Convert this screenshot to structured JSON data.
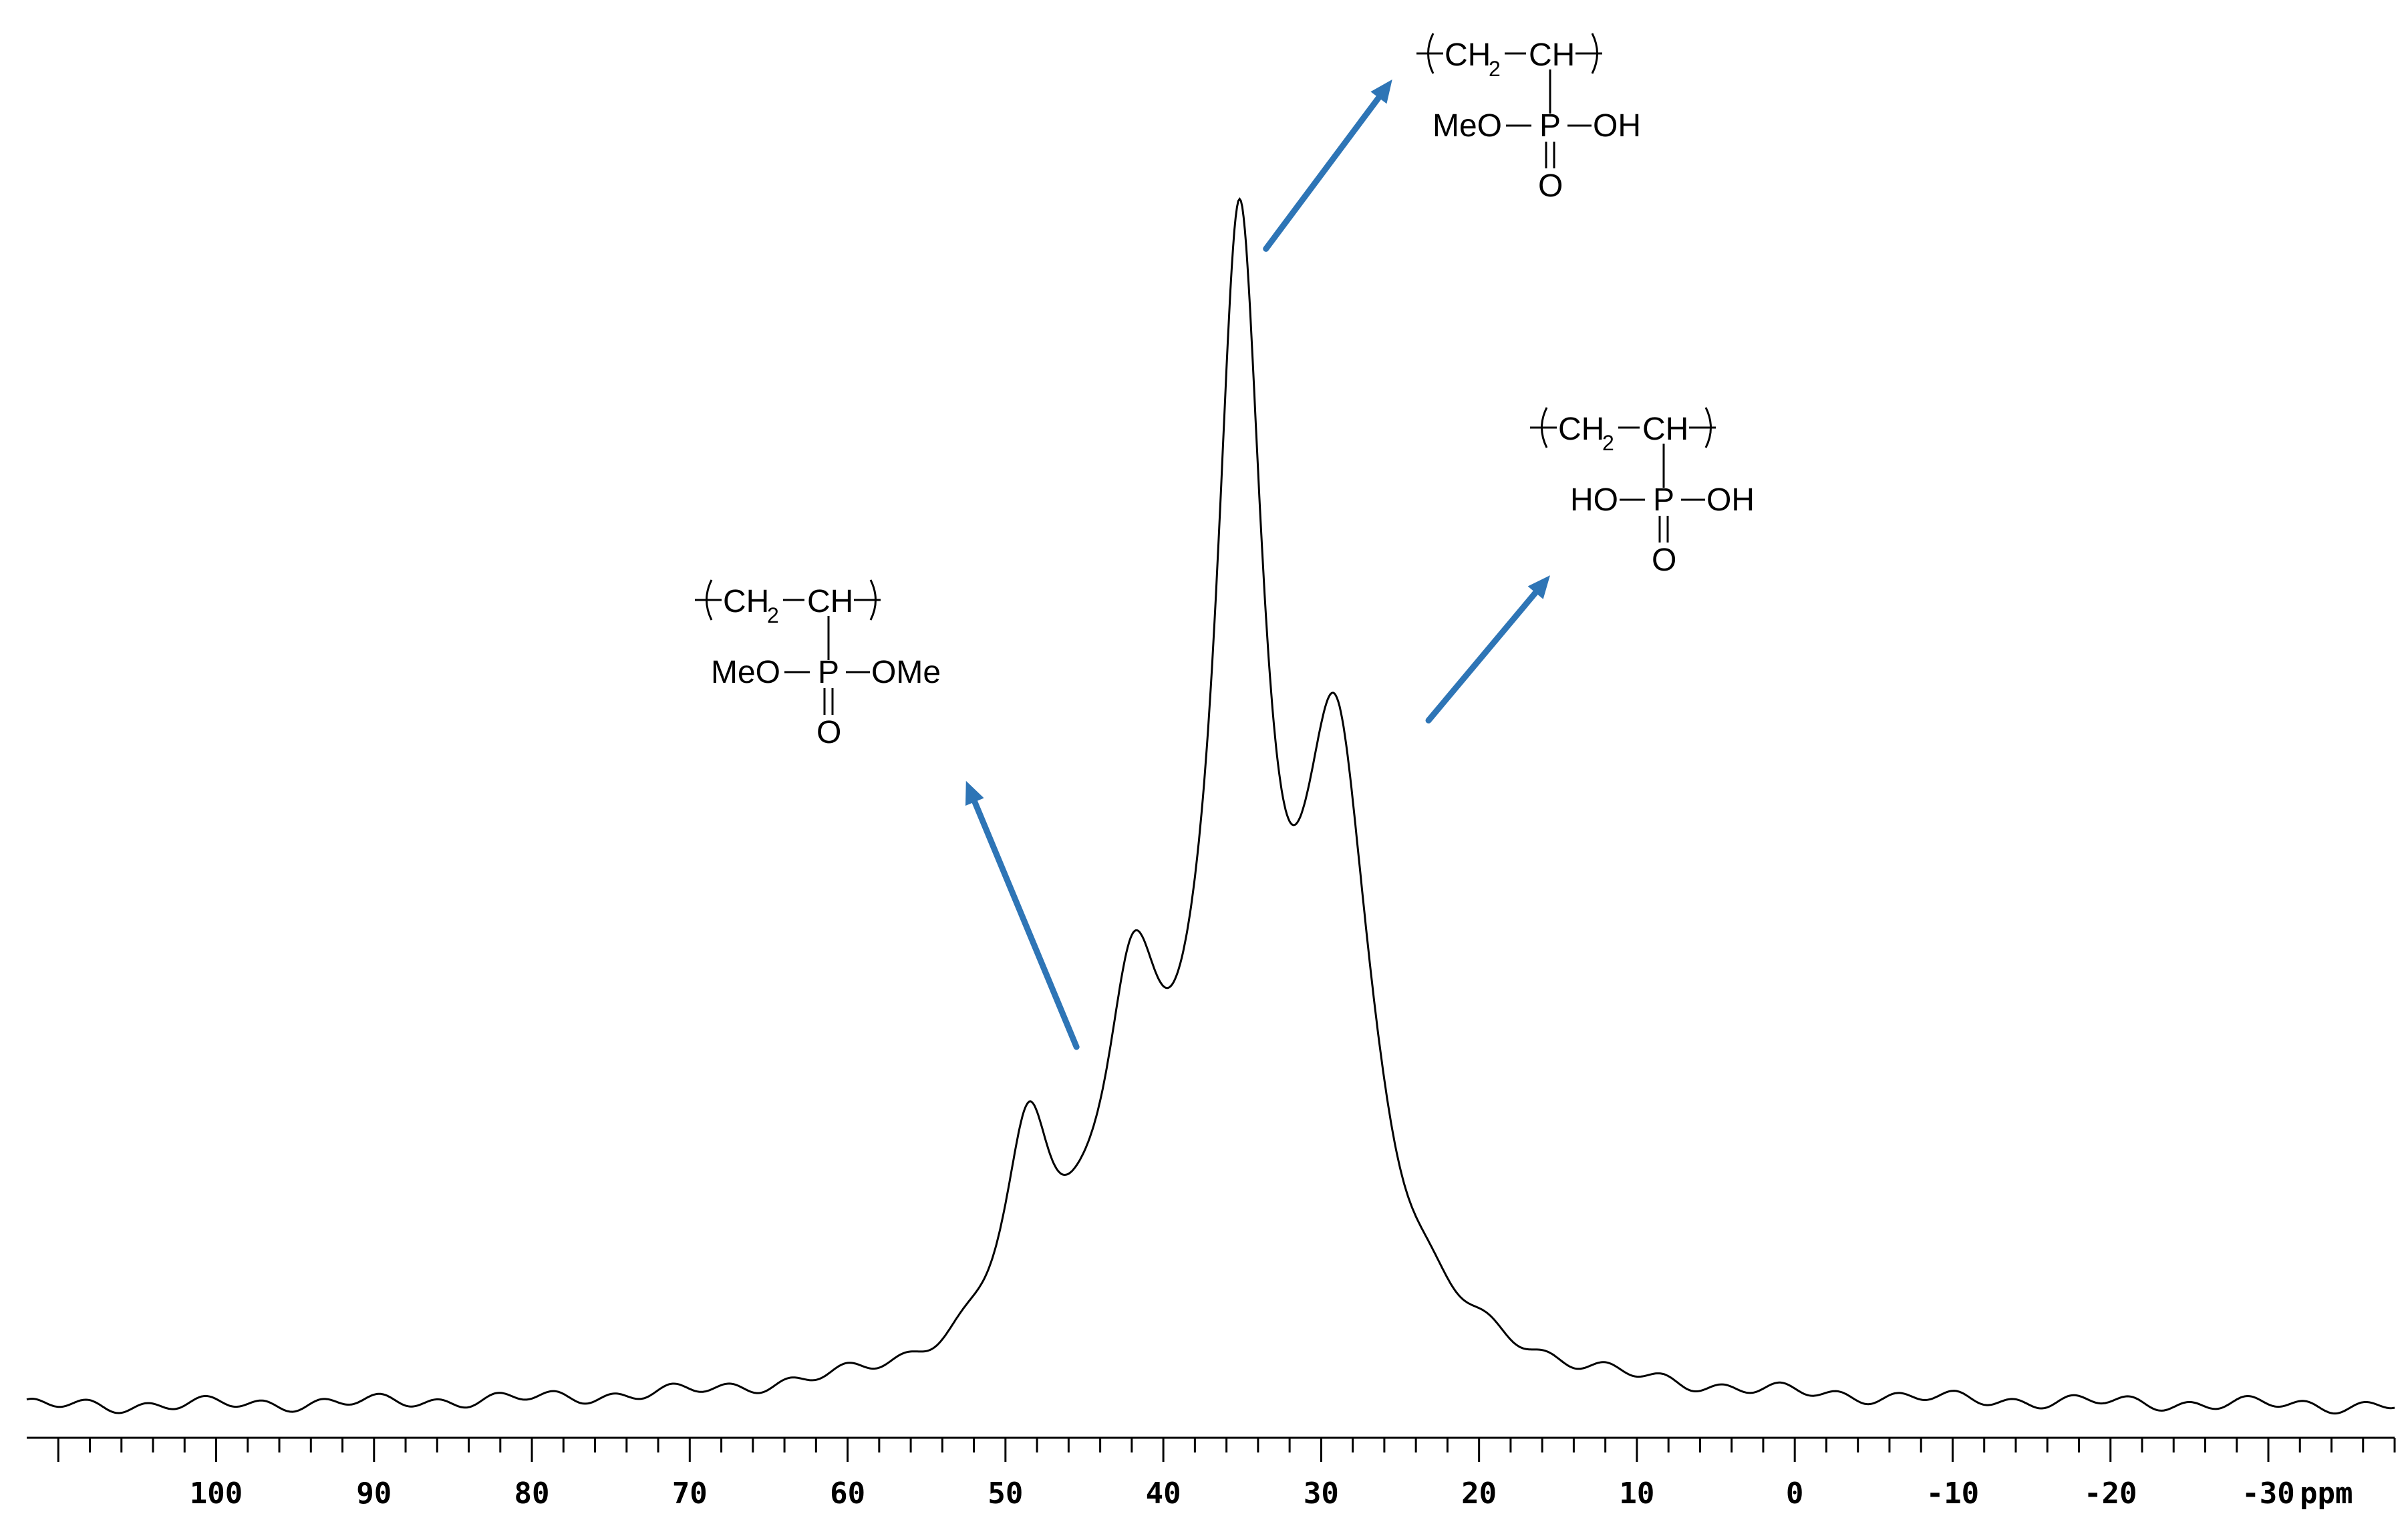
{
  "chart_data": {
    "type": "line",
    "title": "",
    "xlabel": "ppm",
    "ylabel": "",
    "x_reversed": true,
    "xlim": [
      -38,
      112
    ],
    "ylim": [
      0,
      1.0
    ],
    "grid": false,
    "legend": "none",
    "line_color": "#000000",
    "x_ticks": [
      100,
      90,
      80,
      70,
      60,
      50,
      40,
      30,
      20,
      10,
      0,
      -10,
      -20,
      -30
    ],
    "x_tick_labels": [
      "100",
      "90",
      "80",
      "70",
      "60",
      "50",
      "40",
      "30",
      "20",
      "10",
      "0",
      "-10",
      "-20",
      "-30"
    ],
    "x_unit_label": "ppm",
    "series": [
      {
        "peaks": [
          {
            "center": 48.5,
            "height": 0.16,
            "width": 1.8
          },
          {
            "center": 42.0,
            "height": 0.22,
            "width": 2.2
          },
          {
            "center": 35.2,
            "height": 0.8,
            "width": 1.8
          },
          {
            "center": 29.0,
            "height": 0.44,
            "width": 2.5
          }
        ],
        "background": {
          "center": 36.0,
          "height": 0.12,
          "width": 10.0
        }
      }
    ],
    "annotations": [
      {
        "kind": "arrow",
        "target": "structure-dimethyl",
        "color": "#2e75b6",
        "from": [
          45.5,
          0.3
        ],
        "to": [
          52.5,
          0.52
        ]
      },
      {
        "kind": "arrow",
        "target": "structure-monomethyl",
        "color": "#2e75b6",
        "from": [
          33.5,
          0.96
        ],
        "to": [
          25.5,
          1.1
        ]
      },
      {
        "kind": "arrow",
        "target": "structure-acid",
        "color": "#2e75b6",
        "from": [
          23.2,
          0.57
        ],
        "to": [
          15.5,
          0.69
        ]
      }
    ]
  },
  "structures": {
    "dimethyl": {
      "ch2": "CH",
      "sub2": "2",
      "ch": "CH",
      "p": "P",
      "left": "MeO",
      "right": "OMe",
      "oxo": "O"
    },
    "monomethyl": {
      "ch2": "CH",
      "sub2": "2",
      "ch": "CH",
      "p": "P",
      "left": "MeO",
      "right": "OH",
      "oxo": "O"
    },
    "acid": {
      "ch2": "CH",
      "sub2": "2",
      "ch": "CH",
      "p": "P",
      "left": "HO",
      "right": "OH",
      "oxo": "O"
    }
  }
}
